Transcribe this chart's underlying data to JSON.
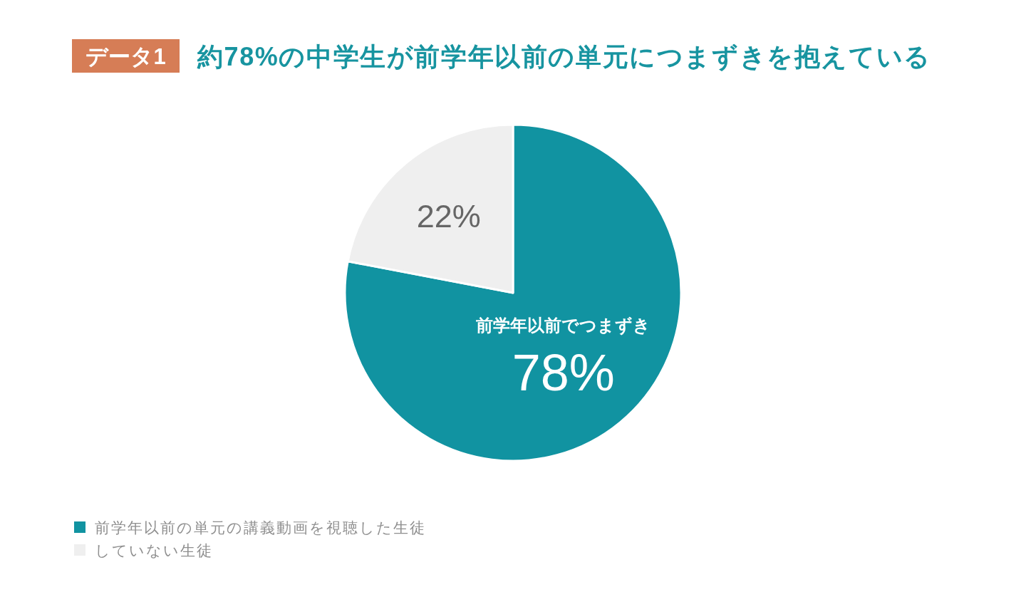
{
  "chart_data": {
    "type": "pie",
    "title": "約78%の中学生が前学年以前の単元につまずきを抱えている",
    "categories": [
      "前学年以前の単元の講義動画を視聴した生徒",
      "していない生徒"
    ],
    "values": [
      78,
      22
    ],
    "colors": [
      "#1193a1",
      "#efefef"
    ],
    "value_labels": [
      "78%",
      "22%"
    ],
    "legend": "bottom left",
    "annotations": [
      "データ1",
      "前学年以前でつまずき"
    ]
  }
}
